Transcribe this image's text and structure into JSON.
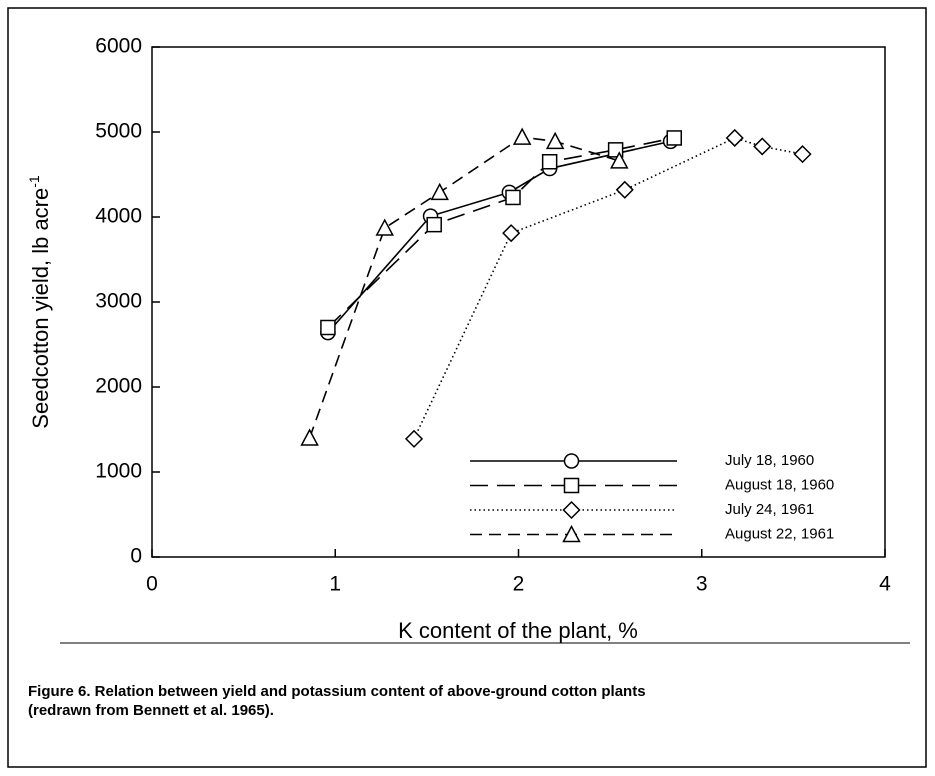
{
  "chart_data": {
    "type": "line",
    "xlabel": "K content of the plant, %",
    "ylabel": "Seedcotton yield, lb acre",
    "ylabel_superscript": "-1",
    "xlim": [
      0,
      4
    ],
    "xticks": [
      0,
      1,
      2,
      3,
      4
    ],
    "ylim": [
      0,
      6000
    ],
    "yticks": [
      0,
      1000,
      2000,
      3000,
      4000,
      5000,
      6000
    ],
    "legend": "lower right",
    "series": [
      {
        "name": "July 18, 1960",
        "color": "#000000",
        "line_style": "solid",
        "marker": "circle",
        "x": [
          0.96,
          1.52,
          1.95,
          2.17,
          2.83
        ],
        "values": [
          2640,
          4010,
          4290,
          4570,
          4890
        ]
      },
      {
        "name": "August 18, 1960",
        "color": "#000000",
        "line_style": "long-dash",
        "marker": "square",
        "x": [
          0.96,
          1.54,
          1.97,
          2.17,
          2.53,
          2.85
        ],
        "values": [
          2700,
          3910,
          4230,
          4650,
          4790,
          4930
        ]
      },
      {
        "name": "July 24, 1961",
        "color": "#000000",
        "line_style": "dotted",
        "marker": "diamond",
        "x": [
          1.43,
          1.96,
          2.58,
          3.18,
          3.33,
          3.55
        ],
        "values": [
          1390,
          3810,
          4320,
          4930,
          4830,
          4740
        ]
      },
      {
        "name": "August 22, 1961",
        "color": "#000000",
        "line_style": "dashed",
        "marker": "triangle",
        "x": [
          0.86,
          1.27,
          1.57,
          2.02,
          2.2,
          2.55
        ],
        "values": [
          1400,
          3870,
          4290,
          4940,
          4890,
          4660
        ]
      }
    ]
  },
  "caption": [
    "Figure 6. Relation between yield and potassium content of above-ground cotton plants",
    "(redrawn from Bennett et al. 1965)."
  ]
}
